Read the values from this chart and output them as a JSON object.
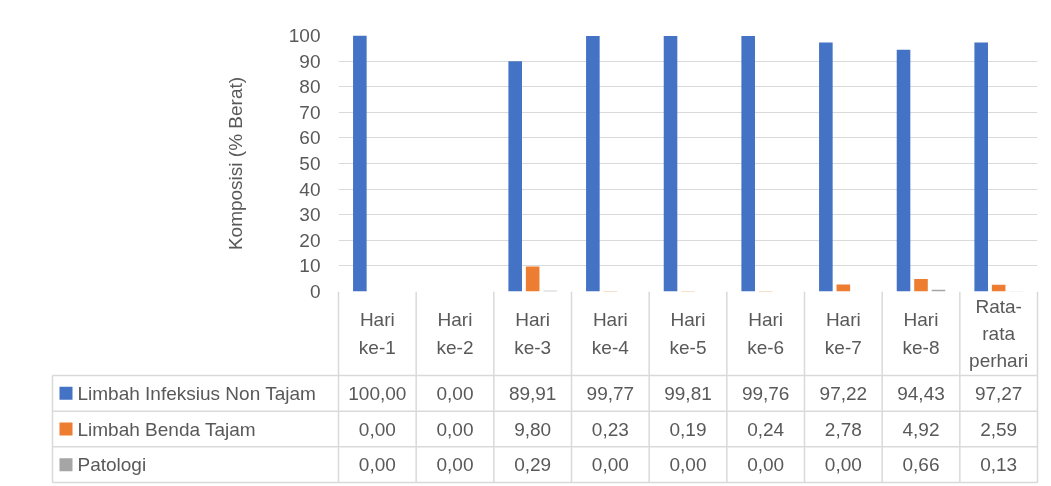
{
  "chart_data": {
    "type": "bar",
    "ylabel": "Komposisi (% Berat)",
    "categories": [
      "Hari ke-1",
      "Hari ke-2",
      "Hari ke-3",
      "Hari ke-4",
      "Hari ke-5",
      "Hari ke-6",
      "Hari ke-7",
      "Hari ke-8",
      "Rata-rata perhari"
    ],
    "series": [
      {
        "name": "Limbah Infeksius Non Tajam",
        "color": "#4472c4",
        "values": [
          100,
          0,
          89.91,
          99.77,
          99.81,
          99.76,
          97.22,
          94.43,
          97.27
        ],
        "value_labels": [
          "100,00",
          "0,00",
          "89,91",
          "99,77",
          "99,81",
          "99,76",
          "97,22",
          "94,43",
          "97,27"
        ]
      },
      {
        "name": "Limbah Benda Tajam",
        "color": "#ed7d31",
        "values": [
          0,
          0,
          9.8,
          0.23,
          0.19,
          0.24,
          2.78,
          4.92,
          2.59
        ],
        "value_labels": [
          "0,00",
          "0,00",
          "9,80",
          "0,23",
          "0,19",
          "0,24",
          "2,78",
          "4,92",
          "2,59"
        ]
      },
      {
        "name": "Patologi",
        "color": "#a5a5a5",
        "values": [
          0,
          0,
          0.29,
          0,
          0,
          0,
          0,
          0.66,
          0.13
        ],
        "value_labels": [
          "0,00",
          "0,00",
          "0,29",
          "0,00",
          "0,00",
          "0,00",
          "0,00",
          "0,66",
          "0,13"
        ]
      }
    ],
    "ylim": [
      0,
      100
    ],
    "yticks": [
      0,
      10,
      20,
      30,
      40,
      50,
      60,
      70,
      80,
      90,
      100
    ],
    "grid": "y",
    "legend": "bottom"
  }
}
